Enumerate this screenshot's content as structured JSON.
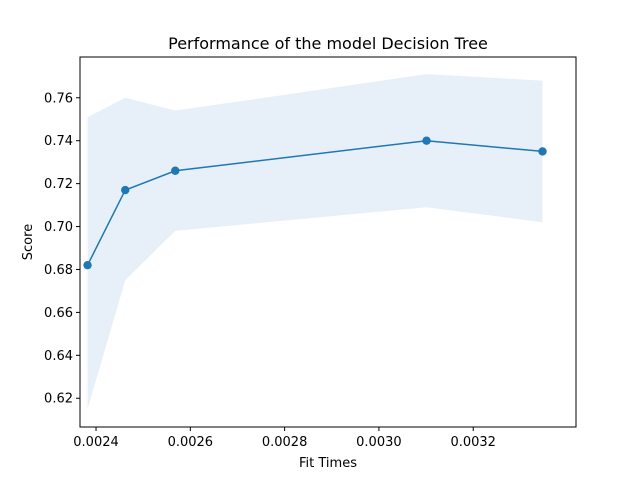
{
  "chart_data": {
    "type": "line",
    "title": "Performance of the model Decision Tree",
    "xlabel": "Fit Times",
    "ylabel": "Score",
    "xlim": [
      0.002366,
      0.003418
    ],
    "ylim": [
      0.6066,
      0.779
    ],
    "xticks": [
      0.0024,
      0.0026,
      0.0028,
      0.003,
      0.0032
    ],
    "xtick_labels": [
      "0.0024",
      "0.0026",
      "0.0028",
      "0.0030",
      "0.0032"
    ],
    "yticks": [
      0.62,
      0.64,
      0.66,
      0.68,
      0.7,
      0.72,
      0.74,
      0.76
    ],
    "ytick_labels": [
      "0.62",
      "0.64",
      "0.66",
      "0.68",
      "0.70",
      "0.72",
      "0.74",
      "0.76"
    ],
    "grid": false,
    "series": [
      {
        "x": [
          0.002382,
          0.002462,
          0.002568,
          0.003101,
          0.003347
        ],
        "y": [
          0.682,
          0.717,
          0.726,
          0.74,
          0.735
        ],
        "band_upper": [
          0.751,
          0.76,
          0.754,
          0.771,
          0.768
        ],
        "band_lower": [
          0.615,
          0.675,
          0.698,
          0.709,
          0.702
        ],
        "line_color": "#1f77b4",
        "band_color": "#e7f0f8",
        "marker": "circle"
      }
    ]
  }
}
